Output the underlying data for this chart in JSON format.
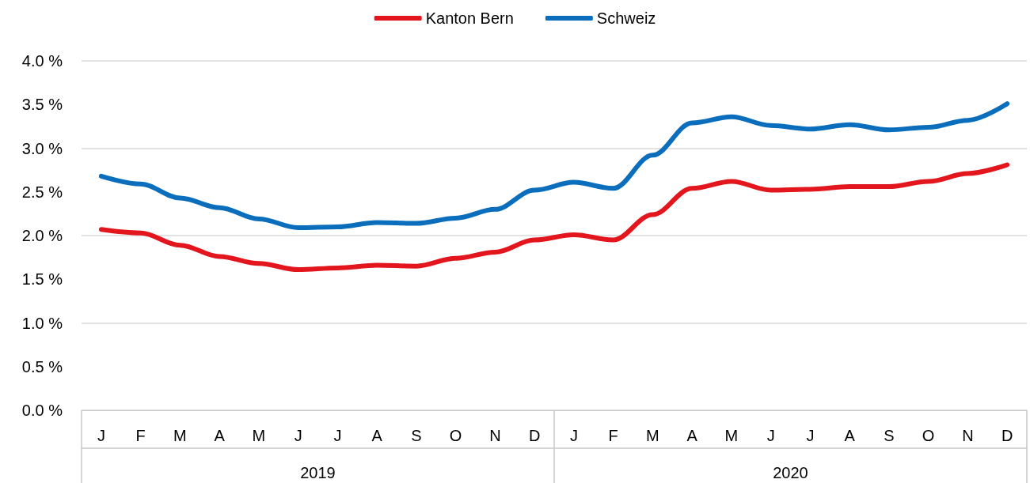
{
  "chart_data": {
    "type": "line",
    "categories": [
      "J",
      "F",
      "M",
      "A",
      "M",
      "J",
      "J",
      "A",
      "S",
      "O",
      "N",
      "D",
      "J",
      "F",
      "M",
      "A",
      "M",
      "J",
      "J",
      "A",
      "S",
      "O",
      "N",
      "D"
    ],
    "series": [
      {
        "name": "Kanton Bern",
        "color": "#e3161e",
        "values": [
          2.07,
          2.03,
          1.89,
          1.76,
          1.68,
          1.61,
          1.63,
          1.66,
          1.65,
          1.74,
          1.81,
          1.95,
          2.01,
          1.95,
          2.24,
          2.54,
          2.62,
          2.52,
          2.53,
          2.56,
          2.56,
          2.62,
          2.71,
          2.81
        ]
      },
      {
        "name": "Schweiz",
        "color": "#0a6ebd",
        "values": [
          2.68,
          2.59,
          2.43,
          2.32,
          2.19,
          2.09,
          2.1,
          2.15,
          2.14,
          2.2,
          2.3,
          2.52,
          2.61,
          2.54,
          2.92,
          3.29,
          3.36,
          3.26,
          3.22,
          3.27,
          3.21,
          3.24,
          3.32,
          3.51
        ]
      }
    ],
    "ylim": [
      0,
      4
    ],
    "yticks": [
      {
        "value": 0,
        "label": "0.0 %"
      },
      {
        "value": 0.5,
        "label": "0.5 %"
      },
      {
        "value": 1,
        "label": "1.0 %"
      },
      {
        "value": 1.5,
        "label": "1.5 %"
      },
      {
        "value": 2,
        "label": "2.0 %"
      },
      {
        "value": 2.5,
        "label": "2.5 %"
      },
      {
        "value": 3,
        "label": "3.0 %"
      },
      {
        "value": 3.5,
        "label": "3.5 %"
      },
      {
        "value": 4,
        "label": "4.0 %"
      }
    ],
    "annotations": [
      "2019",
      "2020"
    ],
    "grid": "y",
    "legend": "top",
    "marker": "none",
    "line_style": "solid"
  }
}
